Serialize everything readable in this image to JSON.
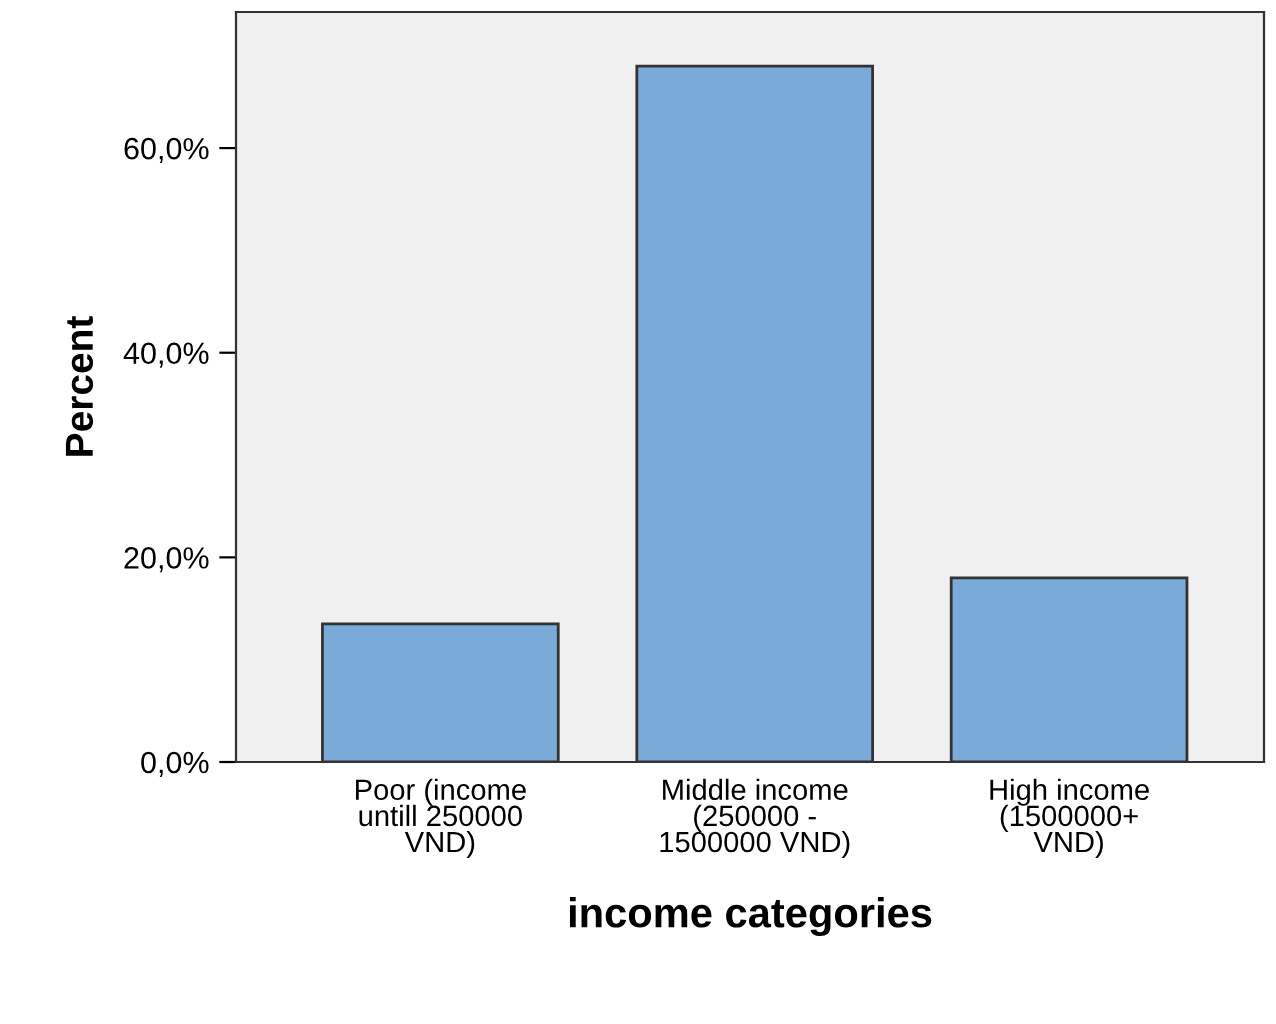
{
  "chart_data": {
    "type": "bar",
    "xlabel": "income categories",
    "ylabel": "Percent",
    "categories": [
      "Poor (income\nuntill 250000\nVND)",
      "Middle income\n(250000 -\n1500000 VND)",
      "High income\n(1500000+\nVND)"
    ],
    "values": [
      13.5,
      68.0,
      18.0
    ],
    "color": "#7aaad7",
    "ylim": [
      0,
      73.3
    ],
    "yticks": [
      {
        "value": 0,
        "label": "0,0%"
      },
      {
        "value": 20,
        "label": "20,0%"
      },
      {
        "value": 40,
        "label": "40,0%"
      },
      {
        "value": 60,
        "label": "60,0%"
      }
    ],
    "grid": false,
    "legend": false
  }
}
